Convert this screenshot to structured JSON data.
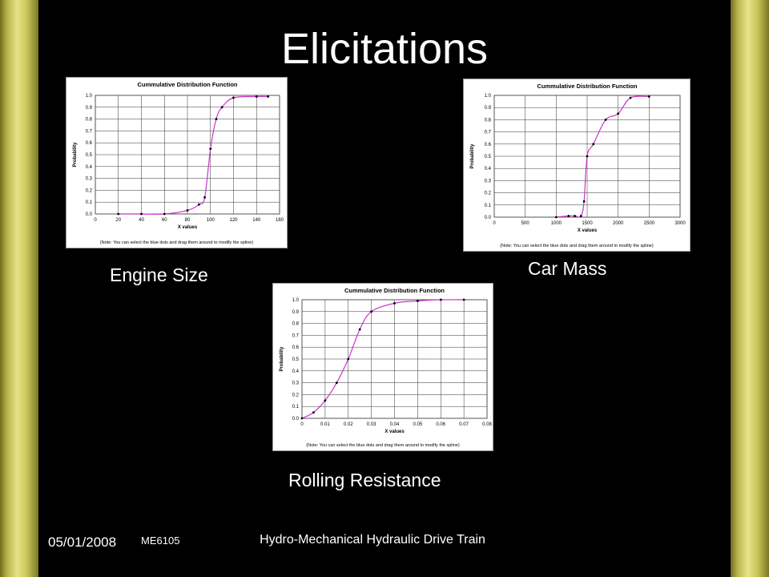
{
  "slide": {
    "title": "Elicitations",
    "footer": {
      "date": "05/01/2008",
      "course": "ME6105",
      "title": "Hydro-Mechanical Hydraulic Drive Train"
    },
    "captions": {
      "engine": "Engine Size",
      "mass": "Car Mass",
      "rolling": "Rolling Resistance"
    }
  },
  "chart_data": [
    {
      "type": "line",
      "title": "Cummulative Distribution Function",
      "xlabel": "X values",
      "ylabel": "Probability",
      "note": "(Note:  You can select the blue dots and drag them around to modify the spline)",
      "xlim": [
        0,
        160
      ],
      "ylim": [
        0,
        1.0
      ],
      "xticks": [
        0,
        20,
        40,
        60,
        80,
        100,
        120,
        140,
        160
      ],
      "xtick_labels": [
        "0",
        "20",
        "40",
        "60",
        "80",
        "100",
        "120",
        "140",
        "160"
      ],
      "yticks": [
        0,
        0.1,
        0.2,
        0.3,
        0.4,
        0.5,
        0.6,
        0.7,
        0.8,
        0.9,
        1.0
      ],
      "ytick_labels": [
        "0.0",
        "0.1",
        "0.2",
        "0.3",
        "0.4",
        "0.5",
        "0.6",
        "0.7",
        "0.8",
        "0.9",
        "1.0"
      ],
      "grid": true,
      "line_color": "#cc33cc",
      "x": [
        20,
        40,
        60,
        80,
        90,
        95,
        100,
        105,
        110,
        120,
        140,
        150
      ],
      "y": [
        0.0,
        0.0,
        0.0,
        0.03,
        0.08,
        0.14,
        0.55,
        0.8,
        0.9,
        0.98,
        0.99,
        0.99
      ]
    },
    {
      "type": "line",
      "title": "Cummulative Distribution Function",
      "xlabel": "X values",
      "ylabel": "Probability",
      "note": "(Note:  You can select the blue dots and drag them around to modify the spline)",
      "xlim": [
        0,
        3000
      ],
      "ylim": [
        0,
        1.0
      ],
      "xticks": [
        0,
        500,
        1000,
        1500,
        2000,
        2500,
        3000
      ],
      "xtick_labels": [
        "0",
        "500",
        "1000",
        "1500",
        "2000",
        "2500",
        "3000"
      ],
      "yticks": [
        0,
        0.1,
        0.2,
        0.3,
        0.4,
        0.5,
        0.6,
        0.7,
        0.8,
        0.9,
        1.0
      ],
      "ytick_labels": [
        "0.0",
        "0.1",
        "0.2",
        "0.3",
        "0.4",
        "0.5",
        "0.6",
        "0.7",
        "0.8",
        "0.9",
        "1.0"
      ],
      "grid": true,
      "line_color": "#cc33cc",
      "x": [
        1000,
        1200,
        1300,
        1400,
        1450,
        1500,
        1600,
        1800,
        2000,
        2200,
        2500
      ],
      "y": [
        0.0,
        0.01,
        0.01,
        0.01,
        0.13,
        0.5,
        0.6,
        0.8,
        0.85,
        0.98,
        0.99
      ]
    },
    {
      "type": "line",
      "title": "Cummulative Distribution Function",
      "xlabel": "X values",
      "ylabel": "Probability",
      "note": "(Note:  You can select the blue dots and drag them around to modify the spline)",
      "xlim": [
        0,
        0.08
      ],
      "ylim": [
        0,
        1.0
      ],
      "xticks": [
        0,
        0.01,
        0.02,
        0.03,
        0.04,
        0.05,
        0.06,
        0.07,
        0.08
      ],
      "xtick_labels": [
        "0",
        "0.01",
        "0.02",
        "0.03",
        "0.04",
        "0.05",
        "0.06",
        "0.07",
        "0.08"
      ],
      "yticks": [
        0,
        0.1,
        0.2,
        0.3,
        0.4,
        0.5,
        0.6,
        0.7,
        0.8,
        0.9,
        1.0
      ],
      "ytick_labels": [
        "0.0",
        "0.1",
        "0.2",
        "0.3",
        "0.4",
        "0.5",
        "0.6",
        "0.7",
        "0.8",
        "0.9",
        "1.0"
      ],
      "grid": true,
      "line_color": "#cc33cc",
      "x": [
        0,
        0.005,
        0.01,
        0.015,
        0.02,
        0.025,
        0.03,
        0.04,
        0.05,
        0.06,
        0.07
      ],
      "y": [
        0.0,
        0.05,
        0.15,
        0.3,
        0.5,
        0.75,
        0.9,
        0.97,
        0.99,
        1.0,
        1.0
      ]
    }
  ]
}
